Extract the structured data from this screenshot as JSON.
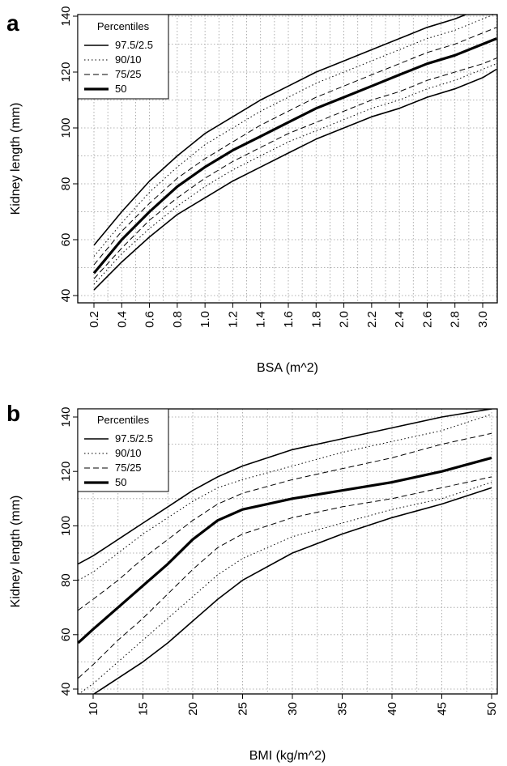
{
  "figure": {
    "panels": [
      {
        "letter": "a",
        "legend": {
          "title": "Percentiles",
          "entries": [
            {
              "label": "97.5/2.5",
              "style": "solid"
            },
            {
              "label": "90/10",
              "style": "dotted"
            },
            {
              "label": "75/25",
              "style": "dashed"
            },
            {
              "label": "50",
              "style": "thick"
            }
          ]
        }
      },
      {
        "letter": "b",
        "legend": {
          "title": "Percentiles",
          "entries": [
            {
              "label": "97.5/2.5",
              "style": "solid"
            },
            {
              "label": "90/10",
              "style": "dotted"
            },
            {
              "label": "75/25",
              "style": "dashed"
            },
            {
              "label": "50",
              "style": "thick"
            }
          ]
        }
      }
    ]
  },
  "chart_data": [
    {
      "type": "line",
      "xlabel": "BSA (m^2)",
      "ylabel": "Kidney length (mm)",
      "xlim": [
        0.2,
        3.1
      ],
      "ylim": [
        40,
        140
      ],
      "x_ticks": [
        "0.2",
        "0.4",
        "0.6",
        "0.8",
        "1.0",
        "1.2",
        "1.4",
        "1.6",
        "1.8",
        "2.0",
        "2.2",
        "2.4",
        "2.6",
        "2.8",
        "3.0"
      ],
      "y_ticks": [
        "40",
        "60",
        "80",
        "100",
        "120",
        "140"
      ],
      "grid": true,
      "legend_position": "top-left",
      "x": [
        0.2,
        0.4,
        0.6,
        0.8,
        1.0,
        1.2,
        1.4,
        1.6,
        1.8,
        2.0,
        2.2,
        2.4,
        2.6,
        2.8,
        3.0,
        3.1
      ],
      "series": [
        {
          "percentile": "97.5",
          "style": "solid",
          "values": [
            58,
            70,
            81,
            90,
            98,
            104,
            110,
            115,
            120,
            124,
            128,
            132,
            136,
            139,
            143,
            145
          ]
        },
        {
          "percentile": "90",
          "style": "dotted",
          "values": [
            54,
            66,
            77,
            86,
            94,
            100,
            106,
            111,
            116,
            120,
            124,
            128,
            132,
            135,
            139,
            141
          ]
        },
        {
          "percentile": "75",
          "style": "dashed",
          "values": [
            51,
            63,
            73,
            82,
            89,
            95,
            101,
            106,
            111,
            115,
            119,
            123,
            127,
            130,
            134,
            136
          ]
        },
        {
          "percentile": "50",
          "style": "thick",
          "values": [
            48,
            60,
            70,
            79,
            86,
            92,
            97,
            102,
            107,
            111,
            115,
            119,
            123,
            126,
            130,
            132
          ]
        },
        {
          "percentile": "25",
          "style": "dashed",
          "values": [
            46,
            57,
            67,
            75,
            82,
            88,
            93,
            98,
            102,
            106,
            110,
            113,
            117,
            120,
            123,
            125
          ]
        },
        {
          "percentile": "10",
          "style": "dotted",
          "values": [
            44,
            55,
            64,
            72,
            79,
            85,
            90,
            95,
            99,
            103,
            107,
            110,
            114,
            117,
            121,
            123
          ]
        },
        {
          "percentile": "2.5",
          "style": "solid",
          "values": [
            42,
            52,
            61,
            69,
            75,
            81,
            86,
            91,
            96,
            100,
            104,
            107,
            111,
            114,
            118,
            121
          ]
        }
      ]
    },
    {
      "type": "line",
      "xlabel": "BMI (kg/m^2)",
      "ylabel": "Kidney length (mm)",
      "xlim": [
        8.5,
        50
      ],
      "ylim": [
        40,
        140
      ],
      "x_ticks": [
        "10",
        "15",
        "20",
        "25",
        "30",
        "35",
        "40",
        "45",
        "50"
      ],
      "y_ticks": [
        "40",
        "60",
        "80",
        "100",
        "120",
        "140"
      ],
      "grid": true,
      "legend_position": "top-left",
      "x": [
        8.5,
        10,
        12.5,
        15,
        17.5,
        20,
        22.5,
        25,
        30,
        35,
        40,
        45,
        50
      ],
      "series": [
        {
          "percentile": "97.5",
          "style": "solid",
          "values": [
            86,
            89,
            95,
            101,
            107,
            113,
            118,
            122,
            128,
            132,
            136,
            140,
            143
          ]
        },
        {
          "percentile": "90",
          "style": "dotted",
          "values": [
            80,
            83,
            90,
            97,
            103,
            109,
            114,
            117,
            122,
            127,
            131,
            135,
            141
          ]
        },
        {
          "percentile": "75",
          "style": "dashed",
          "values": [
            69,
            73,
            80,
            88,
            95,
            102,
            108,
            112,
            117,
            121,
            125,
            130,
            134
          ]
        },
        {
          "percentile": "50",
          "style": "thick",
          "values": [
            57,
            62,
            70,
            78,
            86,
            95,
            102,
            106,
            110,
            113,
            116,
            120,
            125
          ]
        },
        {
          "percentile": "25",
          "style": "dashed",
          "values": [
            44,
            49,
            58,
            66,
            75,
            84,
            92,
            97,
            103,
            107,
            110,
            114,
            118
          ]
        },
        {
          "percentile": "10",
          "style": "dotted",
          "values": [
            38,
            42,
            50,
            58,
            66,
            74,
            82,
            88,
            96,
            101,
            106,
            110,
            116
          ]
        },
        {
          "percentile": "2.5",
          "style": "solid",
          "values": [
            32,
            38,
            44,
            50,
            57,
            65,
            73,
            80,
            90,
            97,
            103,
            108,
            114
          ]
        }
      ]
    }
  ]
}
